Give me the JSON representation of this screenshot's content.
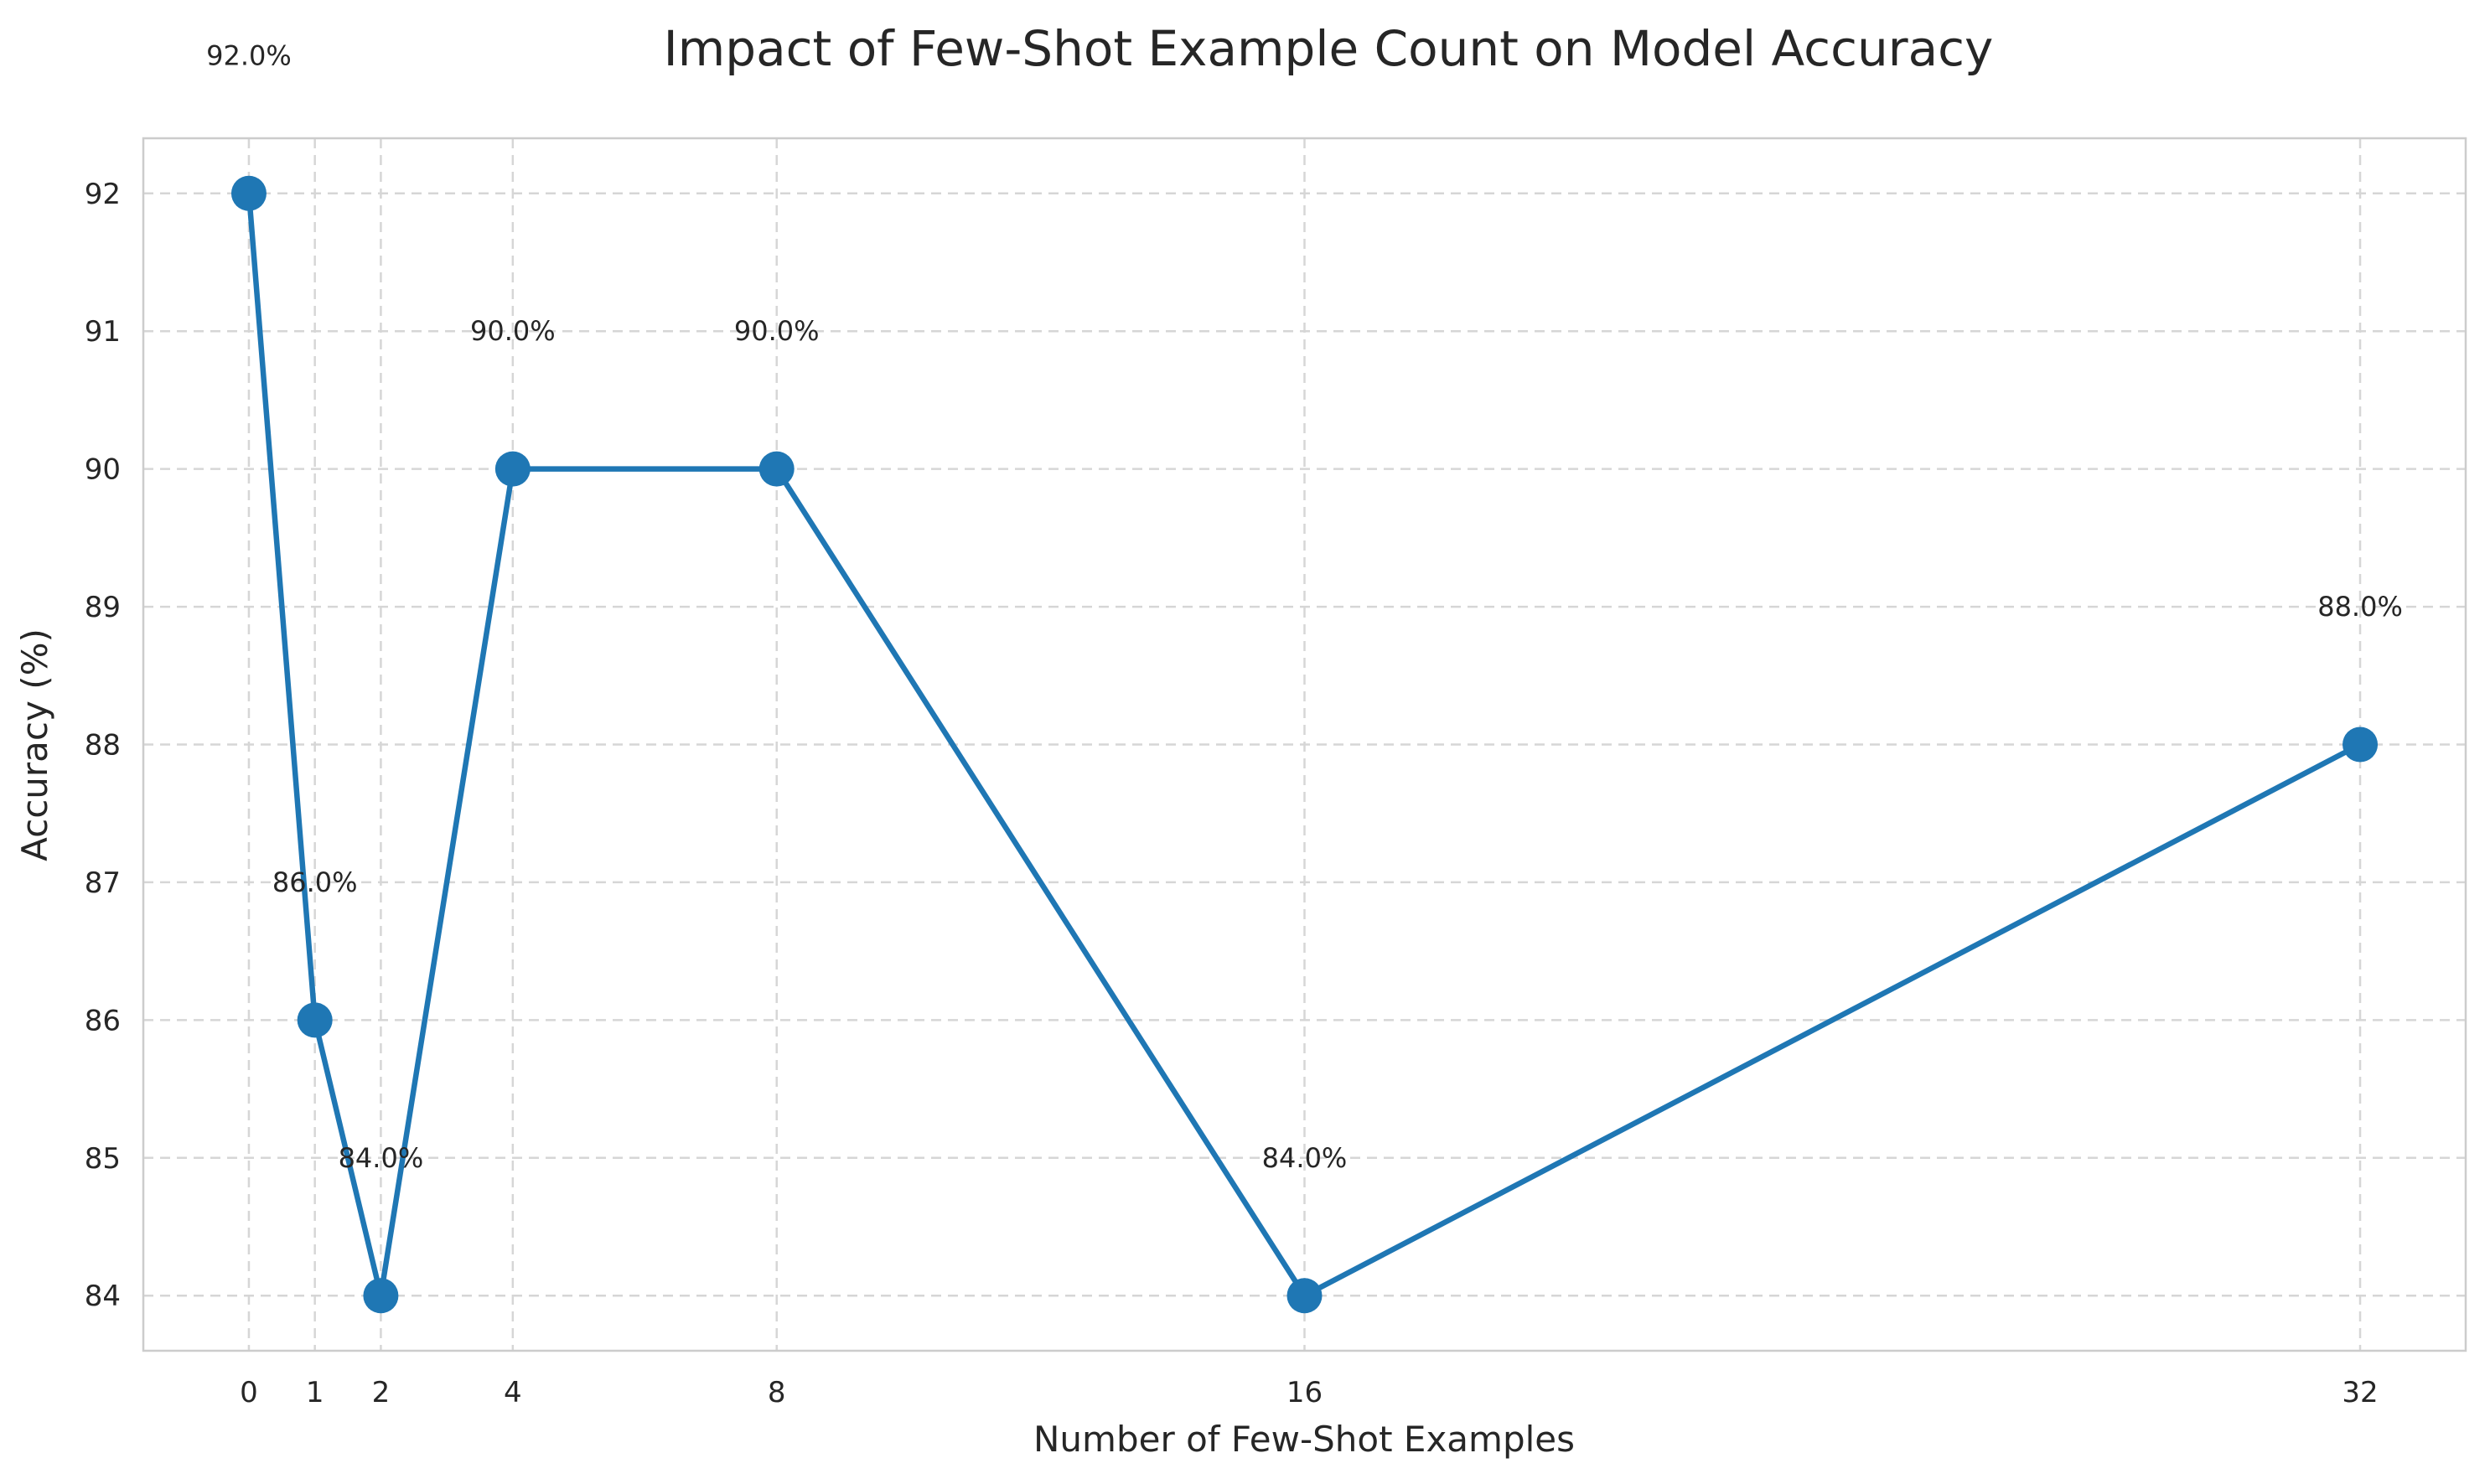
{
  "chart_data": {
    "type": "line",
    "title": "Impact of Few-Shot Example Count on Model Accuracy",
    "xlabel": "Number of Few-Shot Examples",
    "ylabel": "Accuracy (%)",
    "x": [
      0,
      1,
      2,
      4,
      8,
      16,
      32
    ],
    "x_tick_labels": [
      "0",
      "1",
      "2",
      "4",
      "8",
      "16",
      "32"
    ],
    "series": [
      {
        "values": [
          92,
          86,
          84,
          90,
          90,
          84,
          88
        ],
        "color": "#1f77b4",
        "marker": "circle"
      }
    ],
    "data_labels": [
      "92.0%",
      "86.0%",
      "84.0%",
      "90.0%",
      "90.0%",
      "84.0%",
      "88.0%"
    ],
    "y_ticks": [
      84,
      85,
      86,
      87,
      88,
      89,
      90,
      91,
      92
    ],
    "xlim": [
      -1.6,
      33.6
    ],
    "ylim": [
      83.6,
      92.4
    ],
    "grid": true,
    "legend": "none"
  }
}
